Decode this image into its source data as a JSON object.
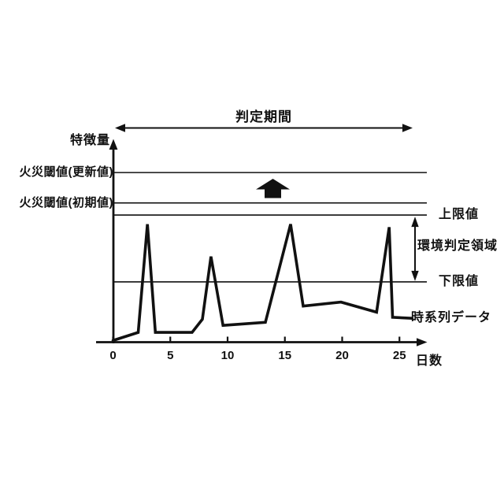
{
  "figure": {
    "background": "#ffffff",
    "ink_color": "#111111"
  },
  "chart_data": {
    "type": "line",
    "title": "判定期間",
    "xlabel": "日数",
    "ylabel": "特徴量",
    "x_ticks": [
      0,
      5,
      10,
      15,
      20,
      25
    ],
    "xlim": [
      0,
      27.5
    ],
    "ylim": [
      0,
      10
    ],
    "grid": false,
    "legend_position": "none",
    "series": [
      {
        "name": "時系列データ",
        "points": [
          [
            0,
            0.1
          ],
          [
            2.2,
            0.5
          ],
          [
            3.0,
            5.85
          ],
          [
            3.7,
            0.5
          ],
          [
            6.9,
            0.5
          ],
          [
            7.8,
            1.15
          ],
          [
            8.55,
            4.25
          ],
          [
            9.6,
            0.85
          ],
          [
            13.3,
            1.0
          ],
          [
            15.5,
            5.85
          ],
          [
            16.6,
            1.8
          ],
          [
            19.9,
            2.0
          ],
          [
            23.0,
            1.5
          ],
          [
            24.1,
            5.7
          ],
          [
            24.4,
            1.25
          ],
          [
            26.1,
            1.2
          ]
        ]
      }
    ],
    "threshold_lines": [
      {
        "id": "fire-threshold-updated",
        "label": "火災閾値(更新値)",
        "value": 8.4,
        "label_side": "left"
      },
      {
        "id": "fire-threshold-initial",
        "label": "火災閾値(初期値)",
        "value": 6.9,
        "label_side": "left"
      },
      {
        "id": "upper-limit",
        "label": "上限値",
        "value": 6.3,
        "label_side": "right"
      },
      {
        "id": "lower-limit",
        "label": "下限値",
        "value": 3.0,
        "label_side": "right"
      }
    ],
    "annotations": [
      {
        "id": "judgment-period",
        "type": "horizontal-double-arrow",
        "label": "判定期間"
      },
      {
        "id": "env-judgment-region",
        "type": "vertical-double-arrow",
        "label": "環境判定領域",
        "from_value": 6.3,
        "to_value": 3.0
      },
      {
        "id": "threshold-update-arrow",
        "type": "solid-up-arrow",
        "label": "",
        "between": [
          "火災閾値(初期値)",
          "火災閾値(更新値)"
        ]
      }
    ]
  }
}
